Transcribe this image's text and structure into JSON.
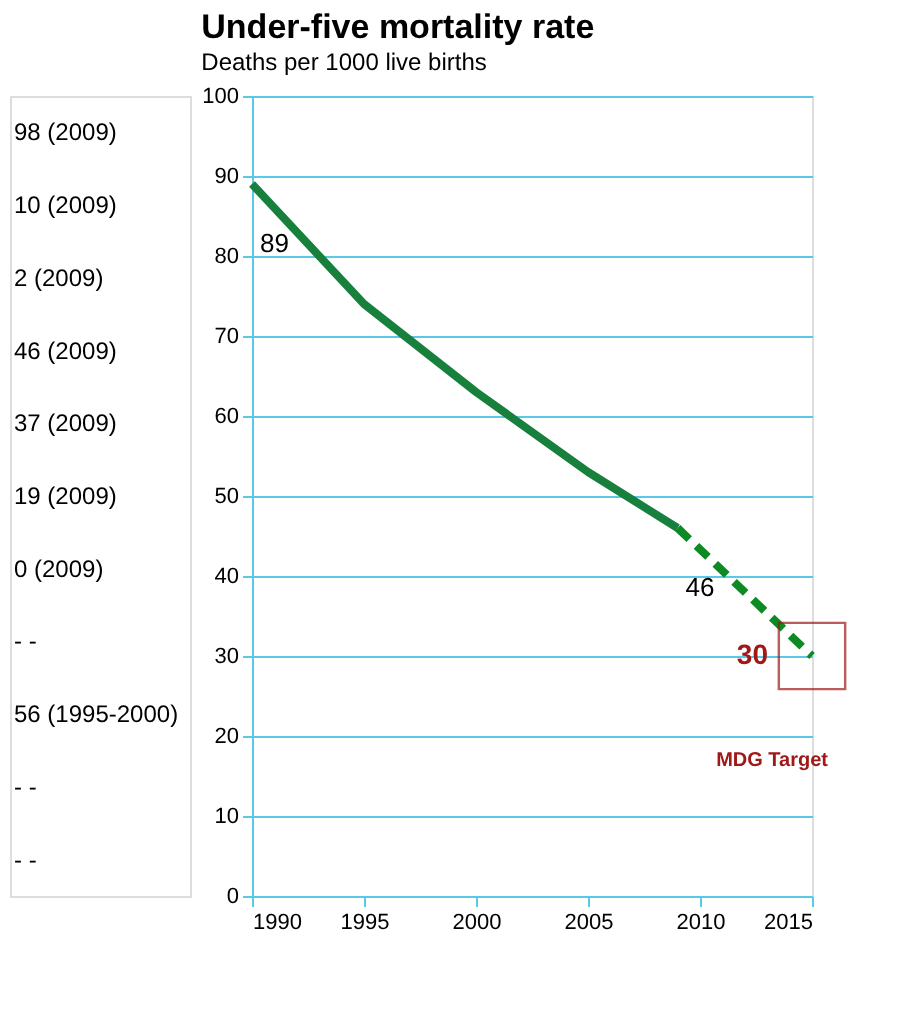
{
  "chart_data": {
    "type": "line",
    "title": "Under-five mortality rate",
    "subtitle": "Deaths per 1000 live births",
    "series": [
      {
        "name": null,
        "type": "line",
        "color": "#17803d",
        "line_style": "solid",
        "x": [
          1990,
          1995,
          2000,
          2005,
          2009
        ],
        "values": [
          89,
          74,
          63,
          53,
          46
        ],
        "value_labels": [
          "89",
          null,
          null,
          null,
          "46"
        ]
      },
      {
        "name": null,
        "type": "line",
        "color": "#0e8a24",
        "line_style": "dashed",
        "x": [
          2009,
          2015
        ],
        "values": [
          46,
          30
        ]
      },
      {
        "name": "MDG Target",
        "type": "scatter",
        "marker": "square",
        "color": "#a01818",
        "x": [
          2015
        ],
        "values": [
          30
        ],
        "value_labels": [
          "30"
        ]
      }
    ],
    "xlim": [
      1990,
      2015
    ],
    "xticks": [
      1990,
      1995,
      2000,
      2005,
      2010,
      2015
    ],
    "ylim": [
      0,
      100
    ],
    "yticks": [
      0,
      10,
      20,
      30,
      40,
      50,
      60,
      70,
      80,
      90,
      100
    ],
    "grid": "y",
    "legend": false,
    "annotations": [
      "98 (2009)",
      "10 (2009)",
      "2 (2009)",
      "46 (2009)",
      "37 (2009)",
      "19 (2009)",
      "0 (2009)",
      "- -",
      "56 (1995-2000)",
      "- -",
      "- -"
    ]
  }
}
